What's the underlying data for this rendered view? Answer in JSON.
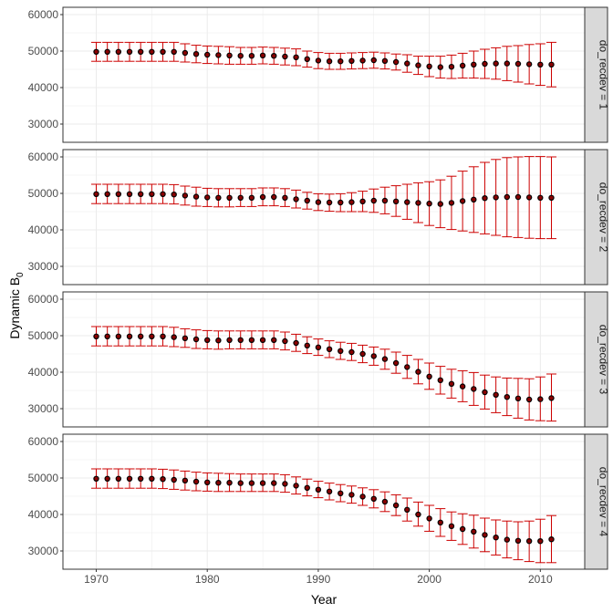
{
  "chart_data": {
    "type": "scatter",
    "subtype": "point-with-errorbars-faceted",
    "xlabel": "Year",
    "ylabel_base": "Dynamic B",
    "ylabel_sub": "0",
    "xlim": [
      1967,
      2014
    ],
    "ylim": [
      25000,
      62000
    ],
    "x_ticks": [
      1970,
      1980,
      1990,
      2000,
      2010
    ],
    "y_ticks": [
      30000,
      40000,
      50000,
      60000
    ],
    "grid": true,
    "colors": {
      "point": "#000000",
      "point_fill": "#8b0000",
      "errorbar": "#cc0000",
      "strip_bg": "#d9d9d9",
      "grid": "#ebebeb",
      "panel_border": "#333333"
    },
    "x": [
      1970,
      1971,
      1972,
      1973,
      1974,
      1975,
      1976,
      1977,
      1978,
      1979,
      1980,
      1981,
      1982,
      1983,
      1984,
      1985,
      1986,
      1987,
      1988,
      1989,
      1990,
      1991,
      1992,
      1993,
      1994,
      1995,
      1996,
      1997,
      1998,
      1999,
      2000,
      2001,
      2002,
      2003,
      2004,
      2005,
      2006,
      2007,
      2008,
      2009,
      2010,
      2011
    ],
    "panels": [
      {
        "strip": "do_recdev = 1",
        "y": [
          49800,
          49800,
          49800,
          49800,
          49800,
          49800,
          49800,
          49800,
          49500,
          49200,
          49000,
          48900,
          48800,
          48700,
          48700,
          48800,
          48700,
          48500,
          48300,
          47800,
          47400,
          47200,
          47200,
          47300,
          47400,
          47500,
          47300,
          47000,
          46600,
          46100,
          45800,
          45600,
          45700,
          46000,
          46300,
          46500,
          46600,
          46600,
          46500,
          46400,
          46300,
          46300
        ],
        "lower": [
          47200,
          47200,
          47200,
          47200,
          47200,
          47200,
          47200,
          47200,
          47000,
          46800,
          46600,
          46500,
          46400,
          46400,
          46400,
          46500,
          46400,
          46200,
          46000,
          45600,
          45200,
          45000,
          45000,
          45100,
          45200,
          45300,
          45100,
          44800,
          44200,
          43600,
          43000,
          42600,
          42500,
          42600,
          42600,
          42500,
          42300,
          41900,
          41500,
          41000,
          40600,
          40200
        ],
        "upper": [
          52400,
          52400,
          52400,
          52400,
          52400,
          52400,
          52400,
          52400,
          52000,
          51600,
          51400,
          51300,
          51200,
          51000,
          51000,
          51100,
          51000,
          50800,
          50600,
          50000,
          49600,
          49400,
          49400,
          49500,
          49600,
          49700,
          49500,
          49200,
          49000,
          48600,
          48600,
          48600,
          48900,
          49400,
          50000,
          50500,
          50900,
          51300,
          51500,
          51800,
          52000,
          52400
        ]
      },
      {
        "strip": "do_recdev = 2",
        "y": [
          49800,
          49800,
          49800,
          49800,
          49800,
          49800,
          49800,
          49700,
          49400,
          49100,
          48900,
          48800,
          48800,
          48800,
          48800,
          49000,
          49000,
          48800,
          48400,
          48000,
          47600,
          47500,
          47500,
          47600,
          47800,
          48000,
          48000,
          47800,
          47600,
          47400,
          47200,
          47100,
          47400,
          47900,
          48300,
          48700,
          48900,
          49000,
          49000,
          48900,
          48800,
          48800
        ],
        "lower": [
          47200,
          47200,
          47200,
          47200,
          47200,
          47200,
          47200,
          47100,
          46800,
          46500,
          46400,
          46300,
          46300,
          46400,
          46400,
          46600,
          46600,
          46400,
          46000,
          45700,
          45300,
          45100,
          45000,
          45000,
          45000,
          44800,
          44400,
          43700,
          42900,
          42000,
          41200,
          40600,
          40100,
          39700,
          39300,
          38900,
          38500,
          38100,
          37900,
          37700,
          37600,
          37600
        ],
        "upper": [
          52500,
          52500,
          52500,
          52500,
          52500,
          52500,
          52500,
          52400,
          52000,
          51700,
          51400,
          51300,
          51300,
          51300,
          51300,
          51500,
          51500,
          51300,
          50900,
          50300,
          49900,
          49800,
          49900,
          50200,
          50600,
          51200,
          51700,
          52100,
          52500,
          52900,
          53200,
          53700,
          54700,
          56100,
          57300,
          58500,
          59300,
          59800,
          60000,
          60100,
          60100,
          60000
        ]
      },
      {
        "strip": "do_recdev = 3",
        "y": [
          49800,
          49800,
          49800,
          49800,
          49800,
          49800,
          49800,
          49600,
          49300,
          49000,
          48800,
          48700,
          48800,
          48800,
          48800,
          48800,
          48800,
          48500,
          48000,
          47300,
          46800,
          46300,
          45800,
          45500,
          45000,
          44400,
          43600,
          42500,
          41400,
          40100,
          38800,
          37800,
          36800,
          36100,
          35400,
          34500,
          33800,
          33200,
          32800,
          32500,
          32600,
          32900
        ],
        "lower": [
          47200,
          47200,
          47200,
          47200,
          47200,
          47200,
          47200,
          47000,
          46800,
          46500,
          46400,
          46300,
          46400,
          46400,
          46400,
          46400,
          46400,
          46100,
          45700,
          45100,
          44600,
          44000,
          43500,
          43200,
          42600,
          41900,
          40800,
          39700,
          38300,
          36800,
          35300,
          34000,
          32900,
          31900,
          30900,
          29900,
          28900,
          28100,
          27400,
          26900,
          26700,
          26600
        ],
        "upper": [
          52500,
          52500,
          52500,
          52500,
          52500,
          52500,
          52500,
          52300,
          51900,
          51600,
          51400,
          51300,
          51300,
          51300,
          51300,
          51300,
          51300,
          51000,
          50400,
          49700,
          49100,
          48600,
          48200,
          47900,
          47400,
          46900,
          46300,
          45500,
          44600,
          43500,
          42500,
          41600,
          40800,
          40400,
          39900,
          39200,
          38700,
          38400,
          38300,
          38200,
          38700,
          39500
        ]
      },
      {
        "strip": "do_recdev = 4",
        "y": [
          49800,
          49800,
          49800,
          49800,
          49800,
          49800,
          49700,
          49500,
          49300,
          49000,
          48800,
          48700,
          48700,
          48600,
          48600,
          48600,
          48600,
          48400,
          47900,
          47300,
          46800,
          46300,
          45800,
          45400,
          44900,
          44300,
          43500,
          42500,
          41300,
          40000,
          38900,
          37800,
          36800,
          36000,
          35300,
          34400,
          33700,
          33100,
          32800,
          32700,
          32700,
          33200
        ],
        "lower": [
          47200,
          47200,
          47200,
          47200,
          47200,
          47200,
          47100,
          46900,
          46700,
          46500,
          46400,
          46300,
          46300,
          46300,
          46300,
          46300,
          46300,
          46100,
          45600,
          45100,
          44600,
          44000,
          43500,
          43100,
          42500,
          41800,
          40800,
          39700,
          38200,
          36800,
          35400,
          34000,
          32900,
          31800,
          30800,
          29800,
          28900,
          28100,
          27600,
          27100,
          26800,
          26800
        ],
        "upper": [
          52500,
          52500,
          52500,
          52500,
          52500,
          52500,
          52400,
          52200,
          51900,
          51600,
          51400,
          51300,
          51200,
          51100,
          51100,
          51100,
          51100,
          50900,
          50300,
          49700,
          49100,
          48600,
          48200,
          47800,
          47300,
          46800,
          46200,
          45400,
          44500,
          43400,
          42500,
          41600,
          40700,
          40200,
          39800,
          39000,
          38500,
          38200,
          38000,
          38200,
          38700,
          39700
        ]
      }
    ]
  }
}
